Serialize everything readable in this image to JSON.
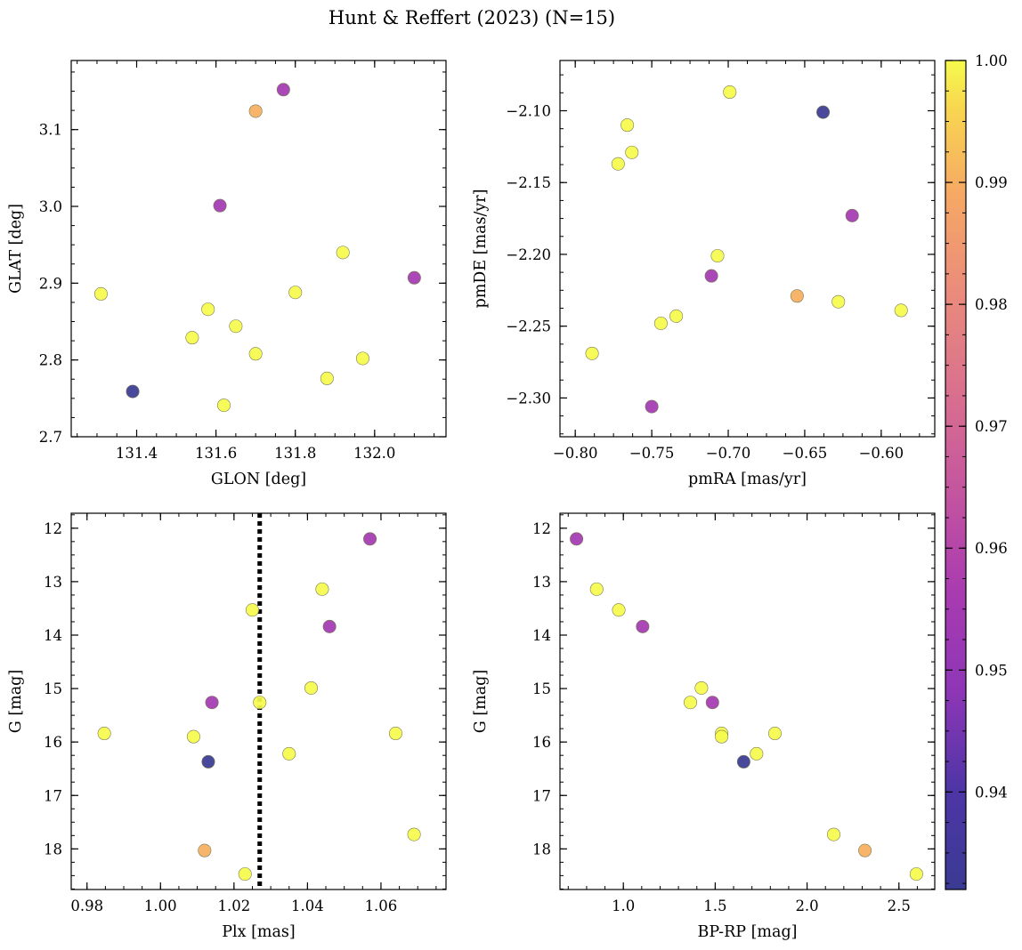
{
  "figure": {
    "title": "Hunt & Reffert (2023) (N=15)"
  },
  "colorbar": {
    "cmap": "plasma",
    "range": [
      0.932,
      1.0
    ],
    "ticks": [
      0.94,
      0.95,
      0.96,
      0.97,
      0.98,
      0.99,
      1.0
    ],
    "tick_labels": [
      "0.94",
      "0.95",
      "0.96",
      "0.97",
      "0.98",
      "0.99",
      "1.00"
    ]
  },
  "chart_data": [
    {
      "type": "scatter",
      "xlabel": "GLON [deg]",
      "ylabel": "GLAT [deg]",
      "xlim": [
        131.235,
        132.18
      ],
      "ylim": [
        2.7,
        3.19
      ],
      "yinvert": false,
      "xticks": [
        131.4,
        131.6,
        131.8,
        132.0
      ],
      "xtick_labels": [
        "131.4",
        "131.6",
        "131.8",
        "132.0"
      ],
      "xminor": 0.05,
      "yticks": [
        2.7,
        2.8,
        2.9,
        3.0,
        3.1
      ],
      "ytick_labels": [
        "2.7",
        "2.8",
        "2.9",
        "3.0",
        "3.1"
      ],
      "yminor": 0.025,
      "points": [
        {
          "x": 131.77,
          "y": 3.152,
          "c": 0.955
        },
        {
          "x": 131.7,
          "y": 3.124,
          "c": 0.99
        },
        {
          "x": 131.61,
          "y": 3.001,
          "c": 0.955
        },
        {
          "x": 131.92,
          "y": 2.94,
          "c": 1.0
        },
        {
          "x": 132.1,
          "y": 2.907,
          "c": 0.955
        },
        {
          "x": 131.31,
          "y": 2.886,
          "c": 1.0
        },
        {
          "x": 131.8,
          "y": 2.888,
          "c": 1.0
        },
        {
          "x": 131.58,
          "y": 2.866,
          "c": 1.0
        },
        {
          "x": 131.65,
          "y": 2.844,
          "c": 1.0
        },
        {
          "x": 131.54,
          "y": 2.829,
          "c": 1.0
        },
        {
          "x": 131.7,
          "y": 2.808,
          "c": 1.0
        },
        {
          "x": 131.97,
          "y": 2.802,
          "c": 1.0
        },
        {
          "x": 131.88,
          "y": 2.776,
          "c": 1.0
        },
        {
          "x": 131.39,
          "y": 2.759,
          "c": 0.932
        },
        {
          "x": 131.62,
          "y": 2.741,
          "c": 1.0
        }
      ]
    },
    {
      "type": "scatter",
      "xlabel": "pmRA [mas/yr]",
      "ylabel": "pmDE [mas/yr]",
      "xlim": [
        -0.81,
        -0.565
      ],
      "ylim": [
        -2.327,
        -2.065
      ],
      "yinvert": false,
      "xticks": [
        -0.8,
        -0.75,
        -0.7,
        -0.65,
        -0.6
      ],
      "xtick_labels": [
        "−0.80",
        "−0.75",
        "−0.70",
        "−0.65",
        "−0.60"
      ],
      "xminor": 0.0125,
      "yticks": [
        -2.3,
        -2.25,
        -2.2,
        -2.15,
        -2.1
      ],
      "ytick_labels": [
        "−2.30",
        "−2.25",
        "−2.20",
        "−2.15",
        "−2.10"
      ],
      "yminor": 0.0125,
      "points": [
        {
          "x": -0.699,
          "y": -2.087,
          "c": 1.0
        },
        {
          "x": -0.638,
          "y": -2.101,
          "c": 0.932
        },
        {
          "x": -0.766,
          "y": -2.11,
          "c": 1.0
        },
        {
          "x": -0.763,
          "y": -2.129,
          "c": 1.0
        },
        {
          "x": -0.772,
          "y": -2.137,
          "c": 1.0
        },
        {
          "x": -0.619,
          "y": -2.173,
          "c": 0.955
        },
        {
          "x": -0.707,
          "y": -2.201,
          "c": 1.0
        },
        {
          "x": -0.711,
          "y": -2.215,
          "c": 0.955
        },
        {
          "x": -0.655,
          "y": -2.229,
          "c": 0.99
        },
        {
          "x": -0.628,
          "y": -2.233,
          "c": 1.0
        },
        {
          "x": -0.587,
          "y": -2.239,
          "c": 1.0
        },
        {
          "x": -0.734,
          "y": -2.243,
          "c": 1.0
        },
        {
          "x": -0.744,
          "y": -2.248,
          "c": 1.0
        },
        {
          "x": -0.789,
          "y": -2.269,
          "c": 1.0
        },
        {
          "x": -0.75,
          "y": -2.306,
          "c": 0.955
        }
      ]
    },
    {
      "type": "scatter",
      "xlabel": "Plx [mas]",
      "ylabel": "G [mag]",
      "xlim": [
        0.9757,
        1.0777
      ],
      "ylim": [
        11.72,
        18.76
      ],
      "yinvert": true,
      "xticks": [
        0.98,
        1.0,
        1.02,
        1.04,
        1.06
      ],
      "xtick_labels": [
        "0.98",
        "1.00",
        "1.02",
        "1.04",
        "1.06"
      ],
      "xminor": 0.005,
      "yticks": [
        12,
        13,
        14,
        15,
        16,
        17,
        18
      ],
      "ytick_labels": [
        "12",
        "13",
        "14",
        "15",
        "16",
        "17",
        "18"
      ],
      "yminor": 0.25,
      "vline": 1.027,
      "points": [
        {
          "x": 1.057,
          "y": 12.2,
          "c": 0.955
        },
        {
          "x": 1.044,
          "y": 13.14,
          "c": 1.0
        },
        {
          "x": 1.025,
          "y": 13.53,
          "c": 1.0
        },
        {
          "x": 1.046,
          "y": 13.84,
          "c": 0.955
        },
        {
          "x": 1.041,
          "y": 14.99,
          "c": 1.0
        },
        {
          "x": 1.014,
          "y": 15.26,
          "c": 0.955
        },
        {
          "x": 1.027,
          "y": 15.26,
          "c": 1.0
        },
        {
          "x": 0.9847,
          "y": 15.84,
          "c": 1.0
        },
        {
          "x": 1.064,
          "y": 15.84,
          "c": 1.0
        },
        {
          "x": 1.009,
          "y": 15.9,
          "c": 1.0
        },
        {
          "x": 1.035,
          "y": 16.22,
          "c": 1.0
        },
        {
          "x": 1.013,
          "y": 16.37,
          "c": 0.932
        },
        {
          "x": 1.069,
          "y": 17.73,
          "c": 1.0
        },
        {
          "x": 1.012,
          "y": 18.03,
          "c": 0.99
        },
        {
          "x": 1.023,
          "y": 18.47,
          "c": 1.0
        }
      ]
    },
    {
      "type": "scatter",
      "xlabel": "BP-RP [mag]",
      "ylabel": "G [mag]",
      "xlim": [
        0.655,
        2.695
      ],
      "ylim": [
        11.72,
        18.76
      ],
      "yinvert": true,
      "xticks": [
        1.0,
        1.5,
        2.0,
        2.5
      ],
      "xtick_labels": [
        "1.0",
        "1.5",
        "2.0",
        "2.5"
      ],
      "xminor": 0.1,
      "yticks": [
        12,
        13,
        14,
        15,
        16,
        17,
        18
      ],
      "ytick_labels": [
        "12",
        "13",
        "14",
        "15",
        "16",
        "17",
        "18"
      ],
      "yminor": 0.25,
      "points": [
        {
          "x": 0.745,
          "y": 12.2,
          "c": 0.955
        },
        {
          "x": 0.855,
          "y": 13.14,
          "c": 1.0
        },
        {
          "x": 0.975,
          "y": 13.53,
          "c": 1.0
        },
        {
          "x": 1.105,
          "y": 13.84,
          "c": 0.955
        },
        {
          "x": 1.425,
          "y": 14.99,
          "c": 1.0
        },
        {
          "x": 1.365,
          "y": 15.26,
          "c": 1.0
        },
        {
          "x": 1.485,
          "y": 15.26,
          "c": 0.955
        },
        {
          "x": 1.535,
          "y": 15.84,
          "c": 1.0
        },
        {
          "x": 1.535,
          "y": 15.9,
          "c": 1.0
        },
        {
          "x": 1.825,
          "y": 15.84,
          "c": 1.0
        },
        {
          "x": 1.725,
          "y": 16.22,
          "c": 1.0
        },
        {
          "x": 1.655,
          "y": 16.37,
          "c": 0.932
        },
        {
          "x": 2.145,
          "y": 17.73,
          "c": 1.0
        },
        {
          "x": 2.315,
          "y": 18.03,
          "c": 0.99
        },
        {
          "x": 2.595,
          "y": 18.47,
          "c": 1.0
        }
      ]
    }
  ]
}
